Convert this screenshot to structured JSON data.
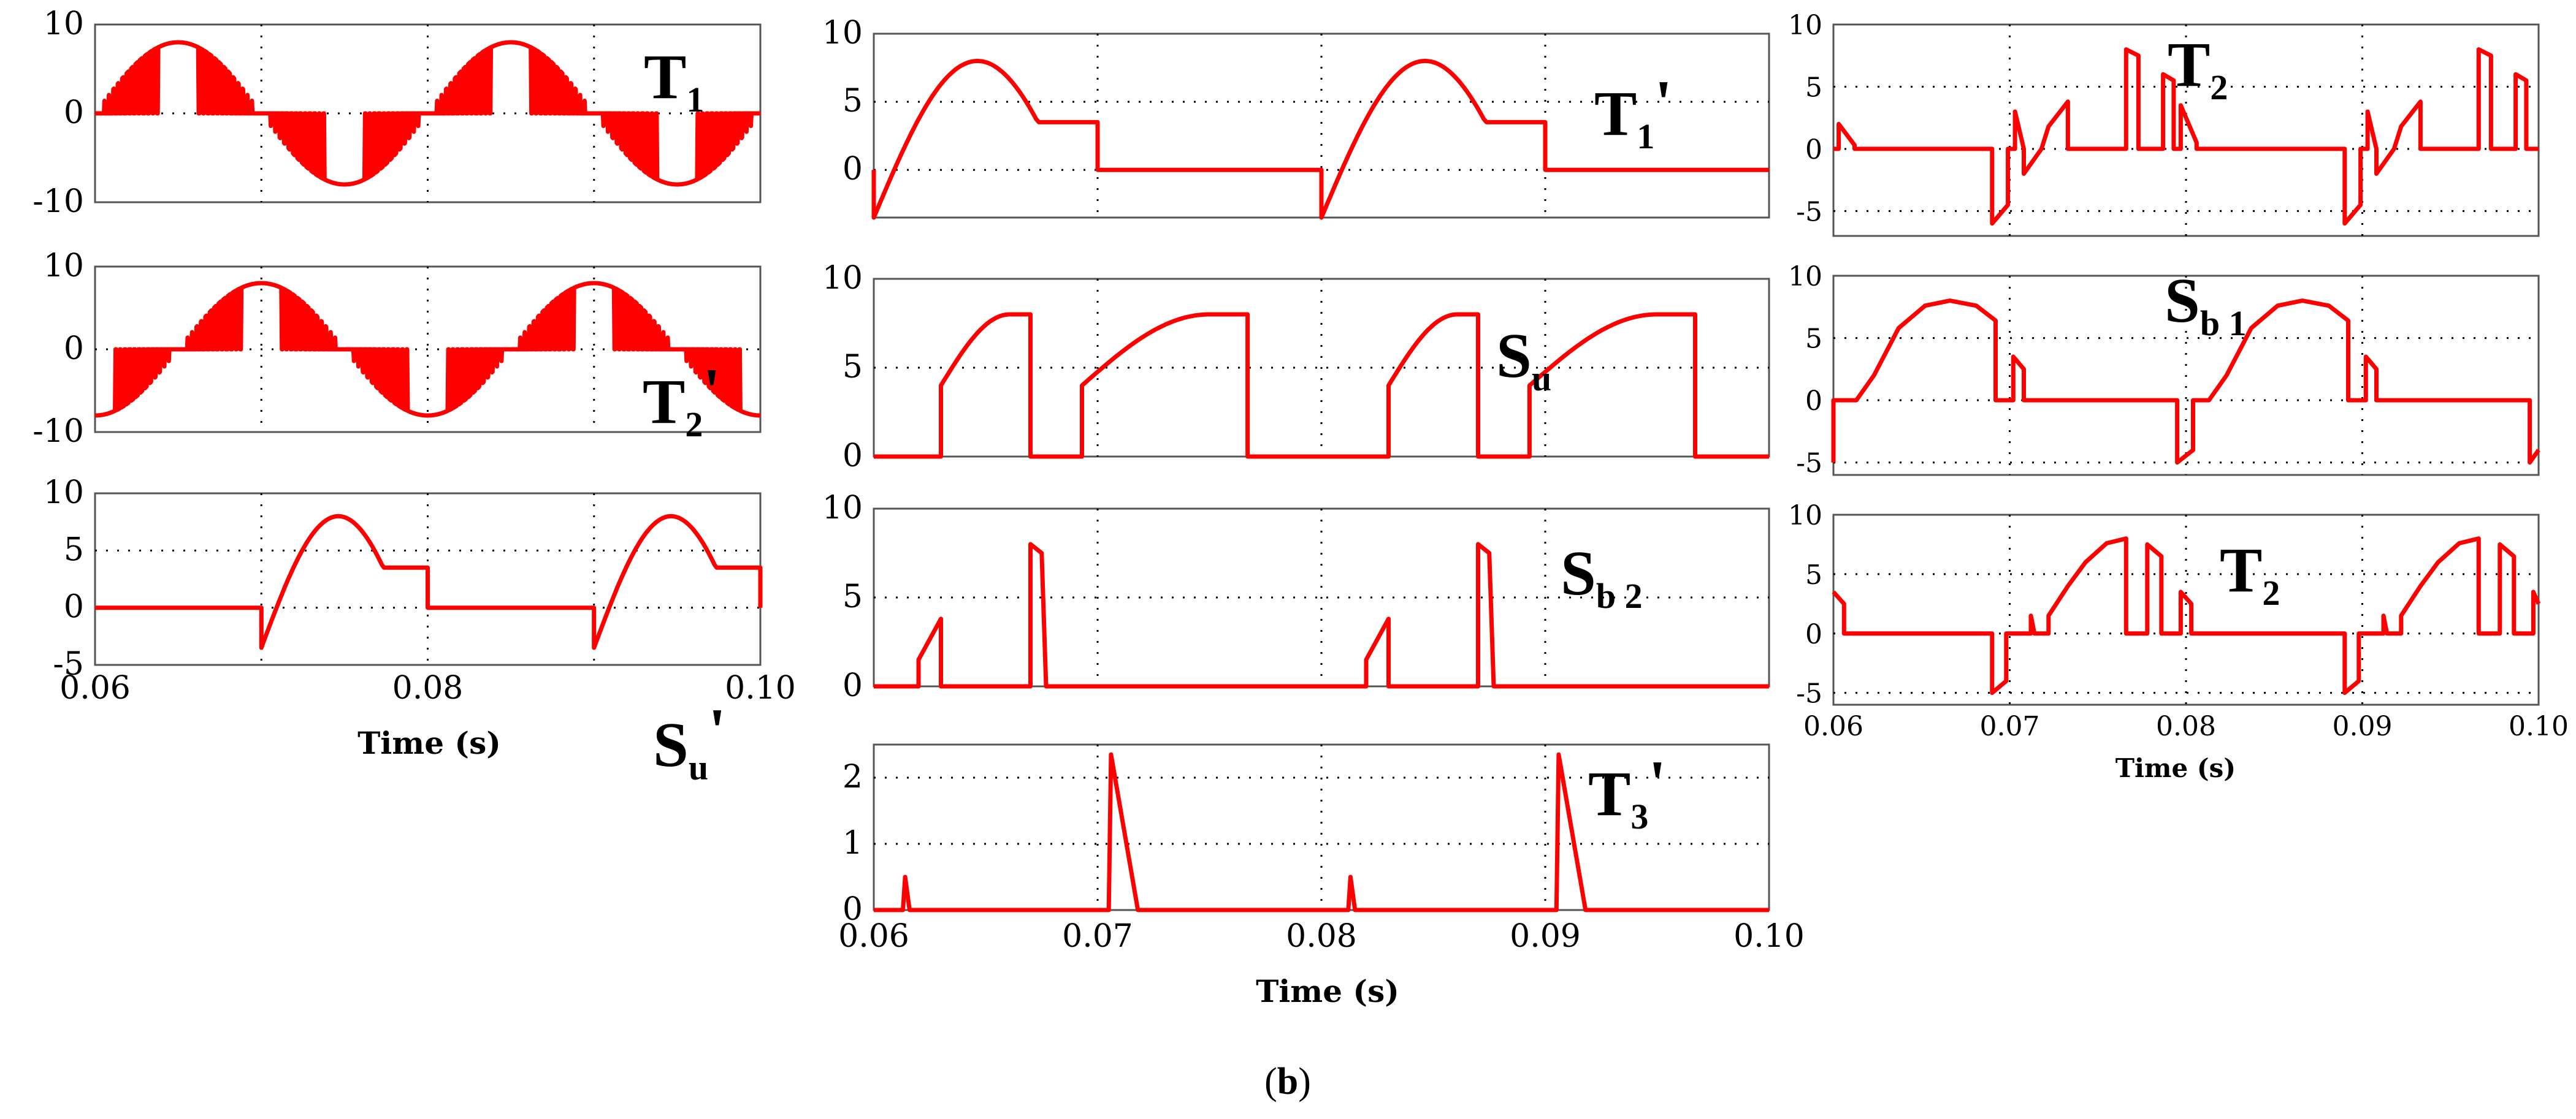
{
  "caption": {
    "open": "(",
    "letter": "b",
    "close": ")"
  },
  "chart_data": [
    {
      "type": "line",
      "id": "T1",
      "label": {
        "main": "T",
        "sub": "1",
        "prime": ""
      },
      "xlim": [
        0.06,
        0.1
      ],
      "ylim": [
        -10,
        10
      ],
      "yticks": [
        "10",
        "0",
        "-10"
      ],
      "xlabel": "",
      "xticklabels": [],
      "series": [
        {
          "name": "T1",
          "color": "#ff0000",
          "wave": "spwm_both",
          "phase": 0.06,
          "period": 0.02,
          "amplitude": 8
        }
      ]
    },
    {
      "type": "line",
      "id": "T2p",
      "label": {
        "main": "T",
        "sub": "2",
        "prime": "'"
      },
      "xlim": [
        0.06,
        0.1
      ],
      "ylim": [
        -10,
        10
      ],
      "yticks": [
        "10",
        "0",
        "-10"
      ],
      "xlabel": "",
      "xticklabels": [],
      "series": [
        {
          "name": "T2'",
          "color": "#ff0000",
          "wave": "spwm_both",
          "phase": 0.065,
          "period": 0.02,
          "amplitude": 8
        }
      ]
    },
    {
      "type": "line",
      "id": "Su_prime",
      "label": {
        "main": "S",
        "sub": "u",
        "prime": "'"
      },
      "xlim": [
        0.06,
        0.1
      ],
      "ylim": [
        -5,
        10
      ],
      "yticks": [
        "10",
        "5",
        "0",
        "-5"
      ],
      "xlabel": "Time (s)",
      "xticklabels": [
        "0.06",
        "0.08",
        "0.10"
      ],
      "series": [
        {
          "name": "Su'",
          "color": "#ff0000",
          "wave": "arch",
          "starts": [
            0.07,
            0.09
          ],
          "width": 0.01,
          "amplitude": 8,
          "edge": 3.5
        }
      ]
    },
    {
      "type": "line",
      "id": "T1p",
      "label": {
        "main": "T",
        "sub": "1",
        "prime": "'"
      },
      "xlim": [
        0.06,
        0.1
      ],
      "ylim": [
        -3.5,
        10
      ],
      "yticks": [
        "10",
        "5",
        "0"
      ],
      "xlabel": "",
      "xticklabels": [],
      "series": [
        {
          "name": "T1'",
          "color": "#ff0000",
          "wave": "arch",
          "starts": [
            0.06,
            0.08
          ],
          "width": 0.01,
          "amplitude": 8,
          "edge": 3.5
        }
      ]
    },
    {
      "type": "line",
      "id": "Su",
      "label": {
        "main": "S",
        "sub": "u",
        "prime": ""
      },
      "xlim": [
        0.06,
        0.1
      ],
      "ylim": [
        0,
        10
      ],
      "yticks": [
        "10",
        "5",
        "0"
      ],
      "xlabel": "",
      "xticklabels": [],
      "series": [
        {
          "name": "Su",
          "color": "#ff0000",
          "wave": "humps",
          "humps": [
            [
              0.063,
              0.067
            ],
            [
              0.0693,
              0.0767
            ],
            [
              0.083,
              0.087
            ],
            [
              0.0893,
              0.0967
            ]
          ],
          "amplitude": 8,
          "edge": 4
        }
      ]
    },
    {
      "type": "line",
      "id": "Sb2",
      "label": {
        "main": "S",
        "sub": "b 2",
        "prime": ""
      },
      "xlim": [
        0.06,
        0.1
      ],
      "ylim": [
        0,
        10
      ],
      "yticks": [
        "10",
        "5",
        "0"
      ],
      "xlabel": "",
      "xticklabels": [],
      "series": [
        {
          "name": "Sb2",
          "color": "#ff0000",
          "wave": "pts",
          "points": [
            [
              0.06,
              0
            ],
            [
              0.062,
              0
            ],
            [
              0.062,
              1.5
            ],
            [
              0.063,
              3.8
            ],
            [
              0.063,
              0
            ],
            [
              0.067,
              0
            ],
            [
              0.067,
              8
            ],
            [
              0.0675,
              7.5
            ],
            [
              0.0677,
              0
            ],
            [
              0.082,
              0
            ],
            [
              0.082,
              1.5
            ],
            [
              0.083,
              3.8
            ],
            [
              0.083,
              0
            ],
            [
              0.087,
              0
            ],
            [
              0.087,
              8
            ],
            [
              0.0875,
              7.5
            ],
            [
              0.0877,
              0
            ],
            [
              0.1,
              0
            ]
          ]
        }
      ]
    },
    {
      "type": "line",
      "id": "T3p",
      "label": {
        "main": "T",
        "sub": "3",
        "prime": "'"
      },
      "xlim": [
        0.06,
        0.1
      ],
      "ylim": [
        0,
        2.5
      ],
      "yticks": [
        "2",
        "1",
        "0"
      ],
      "xlabel": "Time (s)",
      "xticklabels": [
        "0.06",
        "0.07",
        "0.08",
        "0.09",
        "0.10"
      ],
      "series": [
        {
          "name": "T3'",
          "color": "#ff0000",
          "wave": "pts",
          "points": [
            [
              0.06,
              0
            ],
            [
              0.0613,
              0
            ],
            [
              0.0614,
              0.5
            ],
            [
              0.0616,
              0
            ],
            [
              0.0705,
              0
            ],
            [
              0.0706,
              2.35
            ],
            [
              0.0718,
              0
            ],
            [
              0.0812,
              0
            ],
            [
              0.0813,
              0.5
            ],
            [
              0.0815,
              0
            ],
            [
              0.0905,
              0
            ],
            [
              0.0906,
              2.35
            ],
            [
              0.0918,
              0
            ],
            [
              0.1,
              0
            ]
          ]
        }
      ]
    },
    {
      "type": "line",
      "id": "T2_top",
      "label": {
        "main": "T",
        "sub": "2",
        "prime": ""
      },
      "xlim": [
        0.06,
        0.1
      ],
      "ylim": [
        -7,
        10
      ],
      "yticks": [
        "10",
        "5",
        "0",
        "-5"
      ],
      "xlabel": "",
      "xticklabels": [],
      "series": [
        {
          "name": "T2",
          "color": "#ff0000",
          "wave": "pts",
          "points": [
            [
              0.06,
              0
            ],
            [
              0.0603,
              0
            ],
            [
              0.0603,
              2
            ],
            [
              0.0612,
              0.3
            ],
            [
              0.0612,
              0
            ],
            [
              0.069,
              0
            ],
            [
              0.069,
              -6
            ],
            [
              0.0699,
              -4.5
            ],
            [
              0.0699,
              0
            ],
            [
              0.0703,
              0
            ],
            [
              0.0703,
              3
            ],
            [
              0.0708,
              0
            ],
            [
              0.0708,
              -2
            ],
            [
              0.0718,
              0
            ],
            [
              0.0722,
              1.8
            ],
            [
              0.0733,
              3.8
            ],
            [
              0.0733,
              0
            ],
            [
              0.0766,
              0
            ],
            [
              0.0766,
              8
            ],
            [
              0.0773,
              7.5
            ],
            [
              0.0773,
              0
            ],
            [
              0.0787,
              0
            ],
            [
              0.0787,
              6
            ],
            [
              0.0793,
              5.5
            ],
            [
              0.0793,
              0
            ],
            [
              0.0797,
              0
            ],
            [
              0.0797,
              3.5
            ],
            [
              0.0806,
              0.5
            ],
            [
              0.0806,
              0
            ],
            [
              0.089,
              0
            ],
            [
              0.089,
              -6
            ],
            [
              0.0899,
              -4.5
            ],
            [
              0.0899,
              0
            ],
            [
              0.0903,
              0
            ],
            [
              0.0903,
              3
            ],
            [
              0.0908,
              0
            ],
            [
              0.0908,
              -2
            ],
            [
              0.0918,
              0
            ],
            [
              0.0922,
              1.8
            ],
            [
              0.0933,
              3.8
            ],
            [
              0.0933,
              0
            ],
            [
              0.0966,
              0
            ],
            [
              0.0966,
              8
            ],
            [
              0.0973,
              7.5
            ],
            [
              0.0973,
              0
            ],
            [
              0.0987,
              0
            ],
            [
              0.0987,
              6
            ],
            [
              0.0993,
              5.5
            ],
            [
              0.0993,
              0
            ],
            [
              0.1,
              0
            ]
          ]
        }
      ]
    },
    {
      "type": "line",
      "id": "Sb1",
      "label": {
        "main": "S",
        "sub": "b 1",
        "prime": ""
      },
      "xlim": [
        0.06,
        0.1
      ],
      "ylim": [
        -6,
        10
      ],
      "yticks": [
        "10",
        "5",
        "0",
        "-5"
      ],
      "xlabel": "",
      "xticklabels": [],
      "series": [
        {
          "name": "Sb1",
          "color": "#ff0000",
          "wave": "pts",
          "points": [
            [
              0.06,
              -5
            ],
            [
              0.06,
              0
            ],
            [
              0.0613,
              0
            ],
            [
              0.0623,
              2
            ],
            [
              0.0637,
              5.8
            ],
            [
              0.0652,
              7.6
            ],
            [
              0.0666,
              8
            ],
            [
              0.0681,
              7.6
            ],
            [
              0.0692,
              6.4
            ],
            [
              0.0692,
              0
            ],
            [
              0.0702,
              0
            ],
            [
              0.0702,
              3.5
            ],
            [
              0.0708,
              2.5
            ],
            [
              0.0708,
              0
            ],
            [
              0.0795,
              0
            ],
            [
              0.0795,
              -5
            ],
            [
              0.0804,
              -4
            ],
            [
              0.0804,
              0
            ],
            [
              0.0813,
              0
            ],
            [
              0.0823,
              2
            ],
            [
              0.0837,
              5.8
            ],
            [
              0.0852,
              7.6
            ],
            [
              0.0866,
              8
            ],
            [
              0.0881,
              7.6
            ],
            [
              0.0892,
              6.4
            ],
            [
              0.0892,
              0
            ],
            [
              0.0902,
              0
            ],
            [
              0.0902,
              3.5
            ],
            [
              0.0908,
              2.5
            ],
            [
              0.0908,
              0
            ],
            [
              0.0995,
              0
            ],
            [
              0.0995,
              -5
            ],
            [
              0.1,
              -4
            ]
          ]
        }
      ]
    },
    {
      "type": "line",
      "id": "T2_bottom",
      "label": {
        "main": "T",
        "sub": "2",
        "prime": ""
      },
      "xlim": [
        0.06,
        0.1
      ],
      "ylim": [
        -6,
        10
      ],
      "yticks": [
        "10",
        "5",
        "0",
        "-5"
      ],
      "xlabel": "Time (s)",
      "xticklabels": [
        "0.06",
        "0.07",
        "0.08",
        "0.09",
        "0.10"
      ],
      "series": [
        {
          "name": "T2",
          "color": "#ff0000",
          "wave": "pts",
          "points": [
            [
              0.06,
              3.5
            ],
            [
              0.0606,
              2.5
            ],
            [
              0.0606,
              0
            ],
            [
              0.069,
              0
            ],
            [
              0.069,
              -5
            ],
            [
              0.0698,
              -4
            ],
            [
              0.0698,
              0
            ],
            [
              0.0712,
              0
            ],
            [
              0.0712,
              1.5
            ],
            [
              0.0714,
              0
            ],
            [
              0.0722,
              0
            ],
            [
              0.0722,
              1.5
            ],
            [
              0.0733,
              4
            ],
            [
              0.0743,
              6
            ],
            [
              0.0755,
              7.6
            ],
            [
              0.0766,
              8
            ],
            [
              0.0766,
              0
            ],
            [
              0.0778,
              0
            ],
            [
              0.0778,
              7.5
            ],
            [
              0.0786,
              6.5
            ],
            [
              0.0786,
              0
            ],
            [
              0.0797,
              0
            ],
            [
              0.0797,
              3.5
            ],
            [
              0.0803,
              2.5
            ],
            [
              0.0803,
              0
            ],
            [
              0.089,
              0
            ],
            [
              0.089,
              -5
            ],
            [
              0.0898,
              -4
            ],
            [
              0.0898,
              0
            ],
            [
              0.0912,
              0
            ],
            [
              0.0912,
              1.5
            ],
            [
              0.0914,
              0
            ],
            [
              0.0922,
              0
            ],
            [
              0.0922,
              1.5
            ],
            [
              0.0933,
              4
            ],
            [
              0.0943,
              6
            ],
            [
              0.0955,
              7.6
            ],
            [
              0.0966,
              8
            ],
            [
              0.0966,
              0
            ],
            [
              0.0978,
              0
            ],
            [
              0.0978,
              7.5
            ],
            [
              0.0986,
              6.5
            ],
            [
              0.0986,
              0
            ],
            [
              0.0997,
              0
            ],
            [
              0.0997,
              3.5
            ],
            [
              0.1,
              2.5
            ]
          ]
        }
      ]
    }
  ]
}
